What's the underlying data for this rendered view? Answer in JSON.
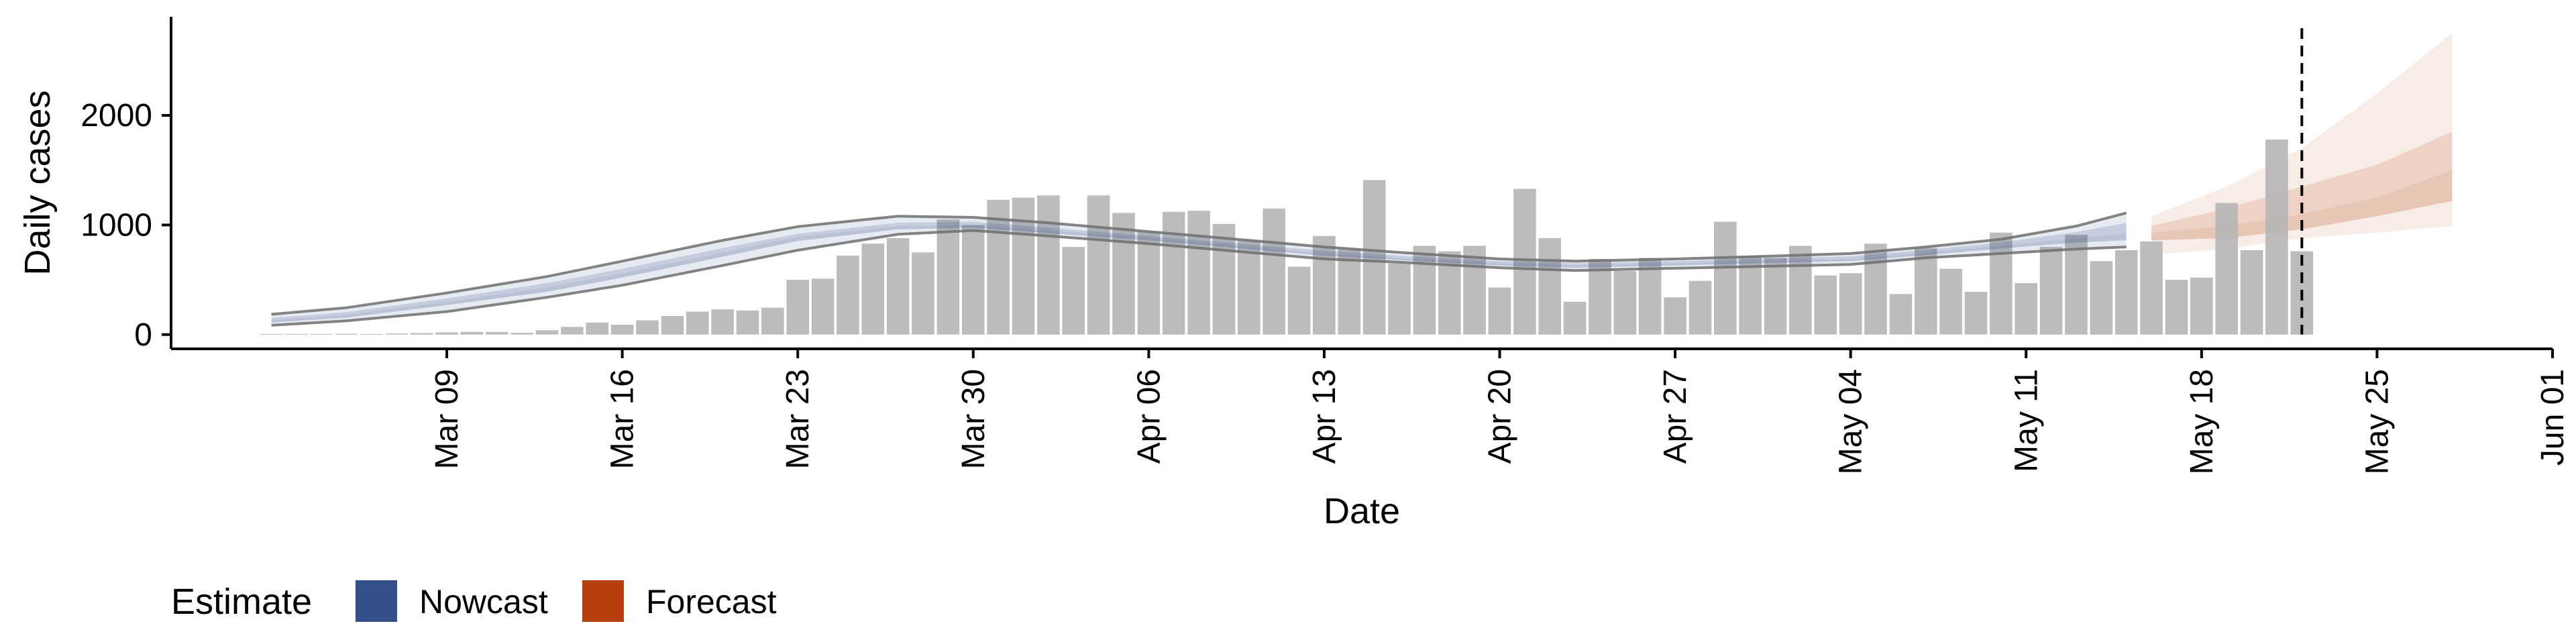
{
  "chart_data": {
    "type": "bar",
    "xlabel": "Date",
    "ylabel": "Daily cases",
    "x_ticks": [
      "Mar 09",
      "Mar 16",
      "Mar 23",
      "Mar 30",
      "Apr 06",
      "Apr 13",
      "Apr 20",
      "Apr 27",
      "May 04",
      "May 11",
      "May 18",
      "May 25",
      "Jun 01"
    ],
    "x_tick_dates": [
      "2020-03-09",
      "2020-03-16",
      "2020-03-23",
      "2020-03-30",
      "2020-04-06",
      "2020-04-13",
      "2020-04-20",
      "2020-04-27",
      "2020-05-04",
      "2020-05-11",
      "2020-05-18",
      "2020-05-25",
      "2020-06-01"
    ],
    "y_ticks": [
      0,
      1000,
      2000
    ],
    "xlim": [
      "2020-02-27",
      "2020-06-01"
    ],
    "ylim": [
      -130,
      2900
    ],
    "vline_date": "2020-05-22",
    "reported_cases": {
      "dates": [
        "2020-03-02",
        "2020-03-03",
        "2020-03-04",
        "2020-03-05",
        "2020-03-06",
        "2020-03-07",
        "2020-03-08",
        "2020-03-09",
        "2020-03-10",
        "2020-03-11",
        "2020-03-12",
        "2020-03-13",
        "2020-03-14",
        "2020-03-15",
        "2020-03-16",
        "2020-03-17",
        "2020-03-18",
        "2020-03-19",
        "2020-03-20",
        "2020-03-21",
        "2020-03-22",
        "2020-03-23",
        "2020-03-24",
        "2020-03-25",
        "2020-03-26",
        "2020-03-27",
        "2020-03-28",
        "2020-03-29",
        "2020-03-30",
        "2020-03-31",
        "2020-04-01",
        "2020-04-02",
        "2020-04-03",
        "2020-04-04",
        "2020-04-05",
        "2020-04-06",
        "2020-04-07",
        "2020-04-08",
        "2020-04-09",
        "2020-04-10",
        "2020-04-11",
        "2020-04-12",
        "2020-04-13",
        "2020-04-14",
        "2020-04-15",
        "2020-04-16",
        "2020-04-17",
        "2020-04-18",
        "2020-04-19",
        "2020-04-20",
        "2020-04-21",
        "2020-04-22",
        "2020-04-23",
        "2020-04-24",
        "2020-04-25",
        "2020-04-26",
        "2020-04-27",
        "2020-04-28",
        "2020-04-29",
        "2020-04-30",
        "2020-05-01",
        "2020-05-02",
        "2020-05-03",
        "2020-05-04",
        "2020-05-05",
        "2020-05-06",
        "2020-05-07",
        "2020-05-08",
        "2020-05-09",
        "2020-05-10",
        "2020-05-11",
        "2020-05-12",
        "2020-05-13",
        "2020-05-14",
        "2020-05-15",
        "2020-05-16",
        "2020-05-17",
        "2020-05-18",
        "2020-05-19",
        "2020-05-20",
        "2020-05-21",
        "2020-05-22"
      ],
      "values": [
        3,
        3,
        6,
        8,
        6,
        10,
        14,
        20,
        25,
        24,
        16,
        40,
        70,
        110,
        90,
        130,
        170,
        210,
        230,
        220,
        245,
        500,
        510,
        720,
        830,
        880,
        750,
        1050,
        1000,
        1230,
        1250,
        1270,
        800,
        1270,
        1110,
        940,
        1120,
        1130,
        1010,
        860,
        1150,
        620,
        900,
        780,
        1410,
        650,
        810,
        760,
        810,
        430,
        1330,
        880,
        300,
        690,
        580,
        700,
        340,
        490,
        1030,
        720,
        700,
        810,
        540,
        560,
        830,
        370,
        790,
        600,
        390,
        930,
        470,
        800,
        910,
        670,
        770,
        850,
        500,
        520,
        1200,
        770,
        1780,
        760
      ]
    },
    "series": [
      {
        "name": "Nowcast",
        "color": "#34508a",
        "dates": [
          "2020-03-02",
          "2020-03-05",
          "2020-03-09",
          "2020-03-13",
          "2020-03-16",
          "2020-03-20",
          "2020-03-23",
          "2020-03-27",
          "2020-03-30",
          "2020-04-02",
          "2020-04-06",
          "2020-04-09",
          "2020-04-13",
          "2020-04-16",
          "2020-04-20",
          "2020-04-23",
          "2020-04-27",
          "2020-04-30",
          "2020-05-04",
          "2020-05-07",
          "2020-05-10",
          "2020-05-13",
          "2020-05-15"
        ],
        "upper_outer": [
          185,
          245,
          380,
          530,
          670,
          860,
          985,
          1080,
          1070,
          1020,
          940,
          880,
          800,
          750,
          690,
          670,
          690,
          710,
          740,
          800,
          870,
          990,
          1110
        ],
        "upper_inner": [
          150,
          205,
          330,
          470,
          600,
          790,
          920,
          1020,
          1030,
          975,
          900,
          840,
          765,
          720,
          670,
          650,
          670,
          690,
          715,
          775,
          840,
          935,
          1020
        ],
        "median": [
          130,
          180,
          300,
          430,
          560,
          750,
          890,
          990,
          1000,
          950,
          880,
          820,
          740,
          700,
          650,
          630,
          650,
          670,
          690,
          750,
          810,
          880,
          920
        ],
        "lower_inner": [
          110,
          155,
          270,
          390,
          520,
          710,
          855,
          960,
          975,
          925,
          860,
          800,
          720,
          680,
          630,
          610,
          630,
          650,
          670,
          725,
          785,
          840,
          860
        ],
        "lower_outer": [
          85,
          125,
          210,
          340,
          450,
          630,
          770,
          915,
          950,
          900,
          830,
          770,
          690,
          660,
          610,
          585,
          605,
          620,
          640,
          700,
          740,
          780,
          800
        ]
      },
      {
        "name": "Forecast",
        "color": "#b5400e",
        "dates": [
          "2020-05-16",
          "2020-05-19",
          "2020-05-22",
          "2020-05-25",
          "2020-05-28"
        ],
        "upper_outer": [
          1080,
          1350,
          1700,
          2200,
          2750
        ],
        "upper_inner": [
          990,
          1150,
          1350,
          1550,
          1850
        ],
        "median": [
          930,
          990,
          1100,
          1250,
          1500
        ],
        "lower_inner": [
          860,
          880,
          960,
          1080,
          1220
        ],
        "lower_outer": [
          730,
          780,
          880,
          930,
          990
        ]
      }
    ],
    "legend": {
      "title": "Estimate",
      "position": "bottom",
      "entries": [
        {
          "label": "Nowcast",
          "color": "#34508a"
        },
        {
          "label": "Forecast",
          "color": "#b5400e"
        }
      ]
    }
  }
}
